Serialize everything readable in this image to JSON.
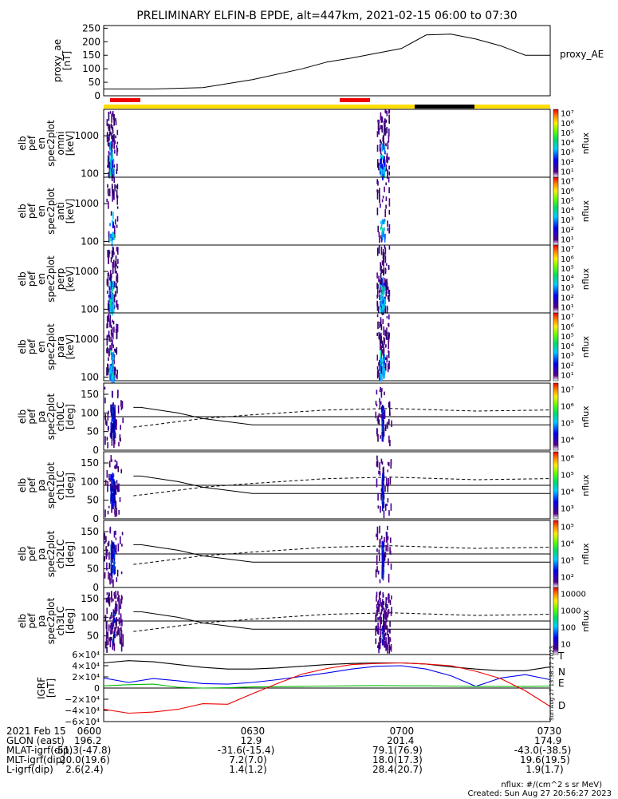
{
  "title": "PRELIMINARY ELFIN-B EPDE, alt=447km, 2021-02-15 06:00 to 07:30",
  "colors": {
    "red_bar": "#ee0000",
    "yellow_bar": "#ffdd00",
    "black_bar": "#000000",
    "igrf_T": "#000000",
    "igrf_N": "#0000ee",
    "igrf_E": "#00bb00",
    "igrf_D": "#ee0000"
  },
  "proxy_ae": {
    "ylabel": [
      "proxy_ae",
      "[nT]"
    ],
    "legend": "proxy_AE",
    "yticks": [
      "250",
      "200",
      "150",
      "100",
      "50",
      "0"
    ]
  },
  "spec_panels": [
    {
      "label": [
        "elb",
        "pef",
        "en",
        "spec2plot",
        "omni",
        "[keV]"
      ],
      "yticks": [
        "1000",
        "100"
      ],
      "cbar_label": "nflux",
      "cbar_ticks": [
        "10⁷",
        "10⁶",
        "10⁵",
        "10⁴",
        "10³",
        "10²",
        "10¹"
      ]
    },
    {
      "label": [
        "elb",
        "pef",
        "en",
        "spec2plot",
        "anti",
        "[keV]"
      ],
      "yticks": [
        "1000",
        "100"
      ],
      "cbar_label": "nflux",
      "cbar_ticks": [
        "10⁷",
        "10⁶",
        "10⁵",
        "10⁴",
        "10³",
        "10²",
        "10¹"
      ]
    },
    {
      "label": [
        "elb",
        "pef",
        "en",
        "spec2plot",
        "perp",
        "[keV]"
      ],
      "yticks": [
        "1000",
        "100"
      ],
      "cbar_label": "nflux",
      "cbar_ticks": [
        "10⁷",
        "10⁶",
        "10⁵",
        "10⁴",
        "10³",
        "10²",
        "10¹"
      ]
    },
    {
      "label": [
        "elb",
        "pef",
        "en",
        "spec2plot",
        "para",
        "[keV]"
      ],
      "yticks": [
        "1000",
        "100"
      ],
      "cbar_label": "nflux",
      "cbar_ticks": [
        "10⁷",
        "10⁶",
        "10⁵",
        "10⁴",
        "10³",
        "10²",
        "10¹"
      ]
    }
  ],
  "pa_panels": [
    {
      "label": [
        "elb",
        "pef",
        "pa",
        "spec2plot",
        "ch0LC",
        "[deg]"
      ],
      "yticks": [
        "150",
        "100",
        "50",
        "0"
      ],
      "cbar_label": "nflux",
      "cbar_ticks": [
        "10⁷",
        "10⁶",
        "10⁵",
        "10⁴"
      ]
    },
    {
      "label": [
        "elb",
        "pef",
        "pa",
        "spec2plot",
        "ch1LC",
        "[deg]"
      ],
      "yticks": [
        "150",
        "100",
        "50",
        "0"
      ],
      "cbar_label": "nflux",
      "cbar_ticks": [
        "10⁶",
        "10⁵",
        "10⁴",
        "10³"
      ]
    },
    {
      "label": [
        "elb",
        "pef",
        "pa",
        "spec2plot",
        "ch2LC",
        "[deg]"
      ],
      "yticks": [
        "150",
        "100",
        "50",
        "0"
      ],
      "cbar_label": "nflux",
      "cbar_ticks": [
        "10⁵",
        "10⁴",
        "10³",
        "10²"
      ]
    },
    {
      "label": [
        "elb",
        "pef",
        "pa",
        "spec2plot",
        "ch3LC",
        "[deg]"
      ],
      "yticks": [
        "150",
        "100",
        "50"
      ],
      "cbar_label": "nflux",
      "cbar_ticks": [
        "10000",
        "1000",
        "100",
        "10"
      ]
    }
  ],
  "igrf": {
    "ylabel": [
      "IGRF",
      "[nT]"
    ],
    "yticks": [
      "6×10⁴",
      "4×10⁴",
      "2×10⁴",
      "0",
      "−2×10⁴",
      "−4×10⁴",
      "−6×10⁴"
    ],
    "legend": [
      "T",
      "N",
      "E",
      "D"
    ],
    "stamp": "Sun Aug 27 13:38:27 2023"
  },
  "footer": {
    "rows": [
      {
        "label": "2021 Feb 15",
        "values": [
          "0600",
          "0630",
          "0700",
          "0730"
        ]
      },
      {
        "label": "GLON (east)",
        "values": [
          "196.2",
          "12.9",
          "201.4",
          "174.9"
        ]
      },
      {
        "label": "MLAT-igrf(dip)",
        "values": [
          "-51.3(-47.8)",
          "-31.6(-15.4)",
          "79.1(76.9)",
          "-43.0(-38.5)"
        ]
      },
      {
        "label": "MLT-igrf(dip)",
        "values": [
          "20.0(19.6)",
          "7.2(7.0)",
          "18.0(17.3)",
          "19.6(19.5)"
        ]
      },
      {
        "label": "L-igrf(dip)",
        "values": [
          "2.6(2.4)",
          "1.4(1.2)",
          "28.4(20.7)",
          "1.9(1.7)"
        ]
      }
    ],
    "units_note": "nflux: #/(cm^2 s sr MeV)",
    "created": "Created: Sun Aug 27 20:56:27 2023"
  },
  "chart_data": [
    {
      "type": "line",
      "name": "proxy_AE",
      "x_unit": "UT",
      "x": [
        "06:00",
        "06:10",
        "06:20",
        "06:30",
        "06:40",
        "06:45",
        "06:50",
        "07:00",
        "07:05",
        "07:10",
        "07:15",
        "07:20",
        "07:25",
        "07:30"
      ],
      "values": [
        25,
        25,
        30,
        60,
        100,
        125,
        140,
        175,
        225,
        228,
        210,
        185,
        150,
        150
      ],
      "ylim": [
        0,
        260
      ]
    },
    {
      "type": "heatmap",
      "name": "energy spectrograms (omni, anti, perp, para)",
      "ylabel": "keV",
      "ylim": [
        80,
        5000
      ],
      "y_log": true,
      "active_intervals_ut": [
        [
          "06:00:30",
          "06:02:45"
        ],
        [
          "06:55:00",
          "06:57:30"
        ]
      ]
    },
    {
      "type": "heatmap",
      "name": "pitch angle spectrograms (ch0LC-ch3LC)",
      "ylabel": "deg",
      "ylim": [
        0,
        180
      ],
      "active_intervals_ut": [
        [
          "06:01:00",
          "06:02:30"
        ],
        [
          "06:55:40",
          "06:56:40"
        ]
      ]
    },
    {
      "type": "line",
      "name": "IGRF",
      "x": [
        "06:00",
        "06:05",
        "06:10",
        "06:15",
        "06:20",
        "06:25",
        "06:30",
        "06:35",
        "06:40",
        "06:45",
        "06:50",
        "06:55",
        "07:00",
        "07:05",
        "07:10",
        "07:15",
        "07:20",
        "07:25",
        "07:30"
      ],
      "series": [
        {
          "name": "T",
          "values": [
            45000,
            49000,
            47000,
            42000,
            37000,
            34000,
            34000,
            36000,
            39000,
            42000,
            44000,
            45000,
            45000,
            43000,
            38000,
            34000,
            31000,
            31000,
            38000
          ]
        },
        {
          "name": "N",
          "values": [
            18000,
            10000,
            17000,
            13000,
            8000,
            7000,
            10000,
            15000,
            21000,
            27000,
            34000,
            39000,
            40000,
            34000,
            22000,
            3000,
            18000,
            24000,
            15000
          ]
        },
        {
          "name": "E",
          "values": [
            4000,
            6000,
            7000,
            1500,
            0,
            500,
            2000,
            2500,
            3000,
            3500,
            4000,
            4500,
            4000,
            4000,
            3500,
            3000,
            3000,
            3000,
            3500
          ]
        },
        {
          "name": "D",
          "values": [
            -38000,
            -45000,
            -43000,
            -38000,
            -28000,
            -29000,
            -10000,
            8000,
            25000,
            35000,
            42000,
            44000,
            45000,
            43000,
            40000,
            30000,
            17000,
            -5000,
            -33000
          ]
        }
      ],
      "ylim": [
        -60000,
        60000
      ]
    }
  ]
}
